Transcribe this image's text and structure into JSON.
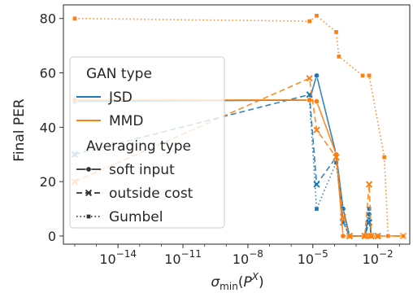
{
  "chart_data": {
    "type": "line",
    "xlabel": "σ_min(P^X)",
    "ylabel": "Final PER",
    "xscale": "log",
    "xlim": [
      3e-17,
      0.3
    ],
    "ylim": [
      -3,
      85
    ],
    "grid": true,
    "x_ticks": [
      {
        "value": 1e-14,
        "label": "10^-14"
      },
      {
        "value": 1e-11,
        "label": "10^-11"
      },
      {
        "value": 1e-08,
        "label": "10^-8"
      },
      {
        "value": 1e-05,
        "label": "10^-5"
      },
      {
        "value": 0.01,
        "label": "10^-2"
      }
    ],
    "y_ticks": [
      0,
      20,
      40,
      60,
      80
    ],
    "legend": {
      "placement": "center-left",
      "sections": [
        {
          "title": "GAN type",
          "entries": [
            {
              "label": "JSD",
              "kind": "color",
              "color": "#1f77b4"
            },
            {
              "label": "MMD",
              "kind": "color",
              "color": "#ff7f0e"
            }
          ]
        },
        {
          "title": "Averaging type",
          "entries": [
            {
              "label": "soft input",
              "kind": "style",
              "dash": "solid",
              "marker": "o"
            },
            {
              "label": "outside cost",
              "kind": "style",
              "dash": "dashed",
              "marker": "x"
            },
            {
              "label": "Gumbel",
              "kind": "style",
              "dash": "dotted",
              "marker": "s"
            }
          ]
        }
      ]
    },
    "series": [
      {
        "gan": "JSD",
        "averaging": "soft input",
        "color": "#1f77b4",
        "dash": "solid",
        "marker": "o",
        "points": [
          [
            1e-16,
            49.5
          ],
          [
            7e-06,
            50
          ],
          [
            1.5e-05,
            59
          ],
          [
            0.00012,
            30
          ],
          [
            0.00025,
            10
          ],
          [
            0.0005,
            0
          ],
          [
            0.0025,
            0
          ],
          [
            0.004,
            8
          ],
          [
            0.005,
            0
          ],
          [
            0.01,
            0
          ]
        ]
      },
      {
        "gan": "JSD",
        "averaging": "outside cost",
        "color": "#1f77b4",
        "dash": "dashed",
        "marker": "x",
        "points": [
          [
            1e-16,
            30
          ],
          [
            7e-06,
            52
          ],
          [
            1.5e-05,
            19
          ],
          [
            0.00012,
            29
          ],
          [
            0.00025,
            5
          ],
          [
            0.0005,
            0
          ],
          [
            0.0025,
            0
          ],
          [
            0.004,
            5
          ],
          [
            0.005,
            0
          ],
          [
            0.01,
            0
          ]
        ]
      },
      {
        "gan": "JSD",
        "averaging": "Gumbel",
        "color": "#1f77b4",
        "dash": "dotted",
        "marker": "s",
        "points": [
          [
            7e-06,
            50
          ],
          [
            1.5e-05,
            10
          ],
          [
            0.00012,
            27
          ],
          [
            0.00025,
            5
          ],
          [
            0.0005,
            0
          ],
          [
            0.0025,
            0
          ],
          [
            0.004,
            10
          ],
          [
            0.005,
            0
          ],
          [
            0.01,
            0
          ]
        ]
      },
      {
        "gan": "MMD",
        "averaging": "soft input",
        "color": "#ff7f0e",
        "dash": "solid",
        "marker": "o",
        "points": [
          [
            1e-16,
            50
          ],
          [
            7e-06,
            50
          ],
          [
            1.5e-05,
            49.5
          ],
          [
            0.00012,
            30
          ],
          [
            0.00025,
            0
          ],
          [
            0.0005,
            0
          ],
          [
            0.0025,
            0
          ],
          [
            0.004,
            0
          ],
          [
            0.005,
            0
          ],
          [
            0.01,
            0
          ],
          [
            0.15,
            0
          ]
        ]
      },
      {
        "gan": "MMD",
        "averaging": "outside cost",
        "color": "#ff7f0e",
        "dash": "dashed",
        "marker": "x",
        "points": [
          [
            1e-16,
            20
          ],
          [
            7e-06,
            58
          ],
          [
            1.5e-05,
            39
          ],
          [
            0.00012,
            29
          ],
          [
            0.00025,
            7
          ],
          [
            0.0005,
            0
          ],
          [
            0.0025,
            0
          ],
          [
            0.004,
            19
          ],
          [
            0.005,
            0
          ],
          [
            0.01,
            0
          ],
          [
            0.15,
            0
          ]
        ]
      },
      {
        "gan": "MMD",
        "averaging": "Gumbel",
        "color": "#ff7f0e",
        "dash": "dotted",
        "marker": "s",
        "points": [
          [
            1e-16,
            80
          ],
          [
            7e-06,
            79
          ],
          [
            1.5e-05,
            81
          ],
          [
            0.00012,
            75
          ],
          [
            0.00016,
            66
          ],
          [
            0.002,
            59
          ],
          [
            0.004,
            59
          ],
          [
            0.02,
            29
          ],
          [
            0.03,
            0
          ],
          [
            0.15,
            0
          ]
        ]
      }
    ]
  }
}
